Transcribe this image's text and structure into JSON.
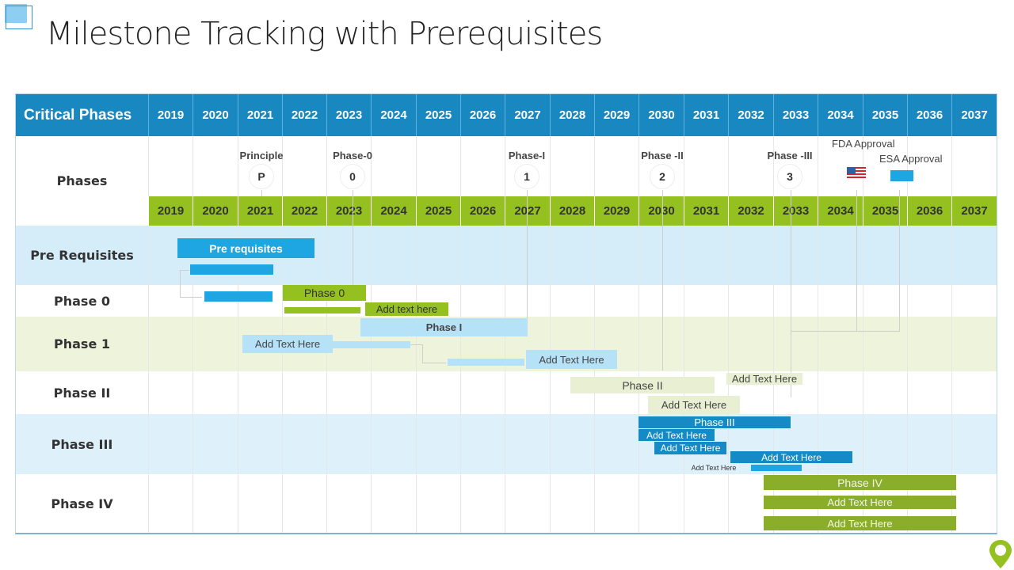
{
  "title": "Milestone Tracking with Prerequisites",
  "header": {
    "first": "Critical Phases",
    "years": [
      "2019",
      "2020",
      "2021",
      "2022",
      "2023",
      "2024",
      "2025",
      "2026",
      "2027",
      "2028",
      "2029",
      "2030",
      "2031",
      "2032",
      "2033",
      "2034",
      "2035",
      "2036",
      "2037"
    ]
  },
  "rows": {
    "phases": "Phases",
    "prereq": "Pre Requisites",
    "p0": "Phase 0",
    "p1": "Phase 1",
    "p2": "Phase II",
    "p3": "Phase III",
    "p4": "Phase IV"
  },
  "milestones": {
    "principle": {
      "label": "Principle",
      "mark": "P"
    },
    "phase0": {
      "label": "Phase-0",
      "mark": "0"
    },
    "phase1": {
      "label": "Phase-I",
      "mark": "1"
    },
    "phase2": {
      "label": "Phase -II",
      "mark": "2"
    },
    "phase3": {
      "label": "Phase -III",
      "mark": "3"
    },
    "fda": {
      "label": "FDA Approval",
      "icon": "us-flag-icon"
    },
    "esa": {
      "label": "ESA Approval",
      "icon": "blue-rect-icon"
    }
  },
  "bars": {
    "prereq_main": "Pre requisites",
    "phase0_main": "Phase 0",
    "phase0_sub": "Add text here",
    "phase1_main": "Phase I",
    "phase1_sub1": "Add Text Here",
    "phase1_sub2": "Add Text Here",
    "phase2_main": "Phase II",
    "phase2_sub1": "Add Text Here",
    "phase2_sub2": "Add Text Here",
    "phase3_main": "Phase III",
    "phase3_sub1": "Add Text Here",
    "phase3_sub2": "Add Text Here",
    "phase3_sub3": "Add Text Here",
    "phase3_sub4": "Add Text Here",
    "phase4_main": "Phase IV",
    "phase4_sub1": "Add Text Here",
    "phase4_sub2": "Add Text Here"
  },
  "colors": {
    "header_blue": "#1a88c0",
    "year_green": "#94c11f",
    "bar_blue": "#1ea6e3",
    "bar_light_blue": "#b5e2f7",
    "band_blue": "#d4edf9",
    "band_green": "#eef3dc"
  }
}
